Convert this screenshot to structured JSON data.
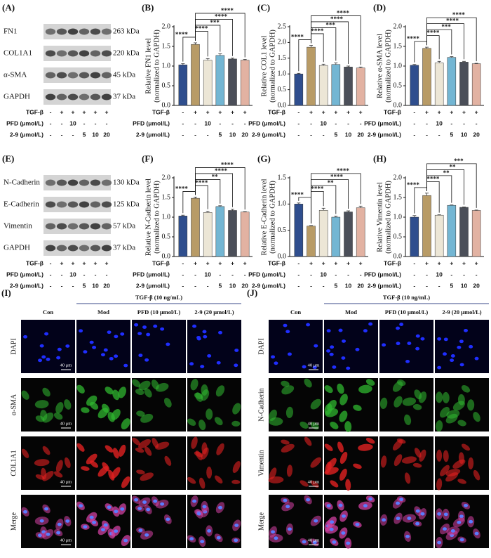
{
  "chart_data": [
    {
      "type": "bar",
      "panel": "(B)",
      "ylabel": [
        "Relative FN1  level",
        "(normalized to GAPDH)"
      ],
      "values": [
        1.03,
        1.55,
        1.15,
        1.27,
        1.18,
        1.15
      ],
      "errors": [
        0.03,
        0.04,
        0.04,
        0.04,
        0.02,
        0.02
      ],
      "colors": [
        "#2f4e8e",
        "#b89b66",
        "#ece6d6",
        "#73b6d3",
        "#4b4f59",
        "#e2b2a2"
      ],
      "ylim": [
        0,
        2
      ],
      "yticks": [
        {
          "value": 0,
          "label": "0.0"
        },
        0.5,
        {
          "value": 1,
          "label": "1.0"
        },
        1.5,
        {
          "value": 2,
          "label": "2.0"
        }
      ],
      "treatments": [
        {
          "label": "TGF-β",
          "values": [
            "-",
            "+",
            "+",
            "+",
            "+",
            "+"
          ]
        },
        {
          "label": "PFD (μmol/L)",
          "values": [
            "-",
            "-",
            "10",
            "-",
            "-",
            "-"
          ]
        },
        {
          "label": "2-9 (μmol/L)",
          "values": [
            "-",
            "-",
            "-",
            "5",
            "10",
            "20"
          ]
        }
      ],
      "significance": [
        {
          "between": [
            0,
            1
          ],
          "label": "****"
        },
        {
          "between": [
            1,
            2
          ],
          "label": "****"
        },
        {
          "between": [
            1,
            3
          ],
          "label": "***"
        },
        {
          "between": [
            1,
            4
          ],
          "label": "****"
        },
        {
          "between": [
            1,
            5
          ],
          "label": "****"
        }
      ]
    },
    {
      "type": "bar",
      "panel": "(C)",
      "ylabel": [
        "Relative COL1  level",
        "(normalized to GAPDH)"
      ],
      "values": [
        1.0,
        1.85,
        1.27,
        1.3,
        1.22,
        1.19
      ],
      "errors": [
        0.02,
        0.06,
        0.04,
        0.05,
        0.03,
        0.03
      ],
      "colors": [
        "#2f4e8e",
        "#b89b66",
        "#ece6d6",
        "#73b6d3",
        "#4b4f59",
        "#e2b2a2"
      ],
      "ylim": [
        0,
        2.5
      ],
      "yticks": [
        {
          "value": 0,
          "label": "0.0"
        },
        0.5,
        {
          "value": 1,
          "label": "1.0"
        },
        1.5,
        {
          "value": 2,
          "label": "2.0"
        },
        2.5
      ],
      "treatments": [
        {
          "label": "TGF-β",
          "values": [
            "-",
            "+",
            "+",
            "+",
            "+",
            "+"
          ]
        },
        {
          "label": "PFD (μmol/L)",
          "values": [
            "-",
            "-",
            "10",
            "-",
            "-",
            "-"
          ]
        },
        {
          "label": "2-9 (μmol/L)",
          "values": [
            "-",
            "-",
            "-",
            "5",
            "10",
            "20"
          ]
        }
      ],
      "significance": [
        {
          "between": [
            0,
            1
          ],
          "label": "****"
        },
        {
          "between": [
            1,
            2
          ],
          "label": "****"
        },
        {
          "between": [
            1,
            3
          ],
          "label": "***"
        },
        {
          "between": [
            1,
            4
          ],
          "label": "****"
        },
        {
          "between": [
            1,
            5
          ],
          "label": "****"
        }
      ]
    },
    {
      "type": "bar",
      "panel": "(D)",
      "ylabel": [
        "Relative α-SMA level",
        "(normalized to GAPDH)"
      ],
      "values": [
        1.02,
        1.45,
        1.08,
        1.22,
        1.1,
        1.06
      ],
      "errors": [
        0.02,
        0.03,
        0.04,
        0.02,
        0.02,
        0.01
      ],
      "colors": [
        "#2f4e8e",
        "#b89b66",
        "#ece6d6",
        "#73b6d3",
        "#4b4f59",
        "#e2b2a2"
      ],
      "ylim": [
        0,
        2
      ],
      "yticks": [
        {
          "value": 0,
          "label": "0.0"
        },
        0.5,
        {
          "value": 1,
          "label": "1.0"
        },
        1.5,
        {
          "value": 2,
          "label": "2.0"
        }
      ],
      "treatments": [
        {
          "label": "TGF-β",
          "values": [
            "-",
            "+",
            "+",
            "+",
            "+",
            "+"
          ]
        },
        {
          "label": "PFD (μmol/L)",
          "values": [
            "-",
            "-",
            "10",
            "-",
            "-",
            "-"
          ]
        },
        {
          "label": "2-9 (μmol/L)",
          "values": [
            "-",
            "-",
            "-",
            "5",
            "10",
            "20"
          ]
        }
      ],
      "significance": [
        {
          "between": [
            0,
            1
          ],
          "label": "****"
        },
        {
          "between": [
            1,
            2
          ],
          "label": "****"
        },
        {
          "between": [
            1,
            3
          ],
          "label": "***"
        },
        {
          "between": [
            1,
            4
          ],
          "label": "****"
        },
        {
          "between": [
            1,
            5
          ],
          "label": "****"
        }
      ]
    },
    {
      "type": "bar",
      "panel": "(F)",
      "ylabel": [
        "Relative N-Cadherin  level",
        "(normalized to GAPDH)"
      ],
      "values": [
        1.03,
        1.48,
        1.12,
        1.27,
        1.17,
        1.13
      ],
      "errors": [
        0.02,
        0.03,
        0.03,
        0.02,
        0.03,
        0.01
      ],
      "colors": [
        "#2f4e8e",
        "#b89b66",
        "#ece6d6",
        "#73b6d3",
        "#4b4f59",
        "#e2b2a2"
      ],
      "ylim": [
        0,
        2
      ],
      "yticks": [
        {
          "value": 0,
          "label": "0.0"
        },
        0.5,
        {
          "value": 1,
          "label": "1.0"
        },
        1.5,
        {
          "value": 2,
          "label": "2.0"
        }
      ],
      "treatments": [
        {
          "label": "TGF-β",
          "values": [
            "-",
            "+",
            "+",
            "+",
            "+",
            "+"
          ]
        },
        {
          "label": "PFD (μmol/L)",
          "values": [
            "-",
            "-",
            "10",
            "-",
            "-",
            "-"
          ]
        },
        {
          "label": "2-9 (μmol/L)",
          "values": [
            "-",
            "-",
            "-",
            "5",
            "10",
            "20"
          ]
        }
      ],
      "significance": [
        {
          "between": [
            0,
            1
          ],
          "label": "****"
        },
        {
          "between": [
            1,
            2
          ],
          "label": "****"
        },
        {
          "between": [
            1,
            3
          ],
          "label": "**"
        },
        {
          "between": [
            1,
            4
          ],
          "label": "****"
        },
        {
          "between": [
            1,
            5
          ],
          "label": "****"
        }
      ]
    },
    {
      "type": "bar",
      "panel": "(G)",
      "ylabel": [
        "Relative E-Cadherin  level",
        "(normalized to GAPDH)"
      ],
      "values": [
        1.0,
        0.58,
        0.88,
        0.75,
        0.85,
        0.93
      ],
      "errors": [
        0.02,
        0.01,
        0.04,
        0.02,
        0.02,
        0.03
      ],
      "colors": [
        "#2f4e8e",
        "#b89b66",
        "#ece6d6",
        "#73b6d3",
        "#4b4f59",
        "#e2b2a2"
      ],
      "ylim": [
        0,
        1.5
      ],
      "yticks": [
        {
          "value": 0,
          "label": "0.0"
        },
        0.5,
        {
          "value": 1,
          "label": "1.0"
        },
        1.5
      ],
      "treatments": [
        {
          "label": "TGF-β",
          "values": [
            "-",
            "+",
            "+",
            "+",
            "+",
            "+"
          ]
        },
        {
          "label": "PFD (μmol/L)",
          "values": [
            "-",
            "-",
            "10",
            "-",
            "-",
            "-"
          ]
        },
        {
          "label": "2-9 (μmol/L)",
          "values": [
            "-",
            "-",
            "-",
            "5",
            "10",
            "20"
          ]
        }
      ],
      "significance": [
        {
          "between": [
            0,
            1
          ],
          "label": "****"
        },
        {
          "between": [
            1,
            2
          ],
          "label": "****"
        },
        {
          "between": [
            1,
            3
          ],
          "label": "**"
        },
        {
          "between": [
            1,
            4
          ],
          "label": "****"
        },
        {
          "between": [
            1,
            5
          ],
          "label": "****"
        }
      ]
    },
    {
      "type": "bar",
      "panel": "(H)",
      "ylabel": [
        "Relative Vimentin  level",
        "(normalized to GAPDH)"
      ],
      "values": [
        1.0,
        1.55,
        1.05,
        1.3,
        1.25,
        1.17
      ],
      "errors": [
        0.04,
        0.06,
        0.01,
        0.01,
        0.01,
        0.01
      ],
      "colors": [
        "#2f4e8e",
        "#b89b66",
        "#ece6d6",
        "#73b6d3",
        "#4b4f59",
        "#e2b2a2"
      ],
      "ylim": [
        0,
        2
      ],
      "yticks": [
        {
          "value": 0,
          "label": "0.0"
        },
        0.5,
        {
          "value": 1,
          "label": "1.0"
        },
        1.5,
        {
          "value": 2,
          "label": "2.0"
        }
      ],
      "treatments": [
        {
          "label": "TGF-β",
          "values": [
            "-",
            "+",
            "+",
            "+",
            "+",
            "+"
          ]
        },
        {
          "label": "PFD (μmol/L)",
          "values": [
            "-",
            "-",
            "10",
            "-",
            "-",
            "-"
          ]
        },
        {
          "label": "2-9 (μmol/L)",
          "values": [
            "-",
            "-",
            "-",
            "5",
            "10",
            "20"
          ]
        }
      ],
      "significance": [
        {
          "between": [
            0,
            1
          ],
          "label": "****"
        },
        {
          "between": [
            1,
            2
          ],
          "label": "****"
        },
        {
          "between": [
            1,
            3
          ],
          "label": "**"
        },
        {
          "between": [
            1,
            4
          ],
          "label": "**"
        },
        {
          "between": [
            1,
            5
          ],
          "label": "***"
        }
      ]
    }
  ],
  "blots": [
    {
      "panel": "(A)",
      "proteins": [
        {
          "name": "FN1",
          "size": "263 kDa"
        },
        {
          "name": "COL1A1",
          "size": "220 kDa"
        },
        {
          "name": "α-SMA",
          "size": "45 kDa"
        },
        {
          "name": "GAPDH",
          "size": "37 kDa"
        }
      ],
      "treatments": [
        {
          "label": "TGF-β",
          "values": [
            "-",
            "+",
            "+",
            "+",
            "+",
            "+"
          ]
        },
        {
          "label": "PFD (μmol/L)",
          "values": [
            "-",
            "-",
            "10",
            "-",
            "-",
            "-"
          ]
        },
        {
          "label": "2-9 (μmol/L)",
          "values": [
            "-",
            "-",
            "-",
            "5",
            "10",
            "20"
          ]
        }
      ]
    },
    {
      "panel": "(E)",
      "proteins": [
        {
          "name": "N-Cadherin",
          "size": "130 kDa"
        },
        {
          "name": "E-Cadherin",
          "size": "125 kDa"
        },
        {
          "name": "Vimentin",
          "size": "57 kDa"
        },
        {
          "name": "GAPDH",
          "size": "37 kDa"
        }
      ],
      "treatments": [
        {
          "label": "TGF-β",
          "values": [
            "-",
            "+",
            "+",
            "+",
            "+",
            "+"
          ]
        },
        {
          "label": "PFD (μmol/L)",
          "values": [
            "-",
            "-",
            "10",
            "-",
            "-",
            "-"
          ]
        },
        {
          "label": "2-9 (μmol/L)",
          "values": [
            "-",
            "-",
            "-",
            "5",
            "10",
            "20"
          ]
        }
      ]
    }
  ],
  "micrographs": [
    {
      "panel": "(I)",
      "treatment_header": "TGF-β (10 ng/mL)",
      "columns": [
        "Con",
        "Mod",
        "PFD (10 μmol/L)",
        "2-9 (20 μmol/L)"
      ],
      "rows": [
        "DAPI",
        "α-SMA",
        "COL1A1",
        "Merge"
      ],
      "scale_bar": "40 μm"
    },
    {
      "panel": "(J)",
      "treatment_header": "TGF-β (10 ng/mL)",
      "columns": [
        "Con",
        "Mod",
        "PFD (10 μmol/L)",
        "2-9 (20 μmol/L)"
      ],
      "rows": [
        "DAPI",
        "N-Cadherin",
        "Vimentin",
        "Merge"
      ],
      "scale_bar": "40 μm"
    }
  ]
}
